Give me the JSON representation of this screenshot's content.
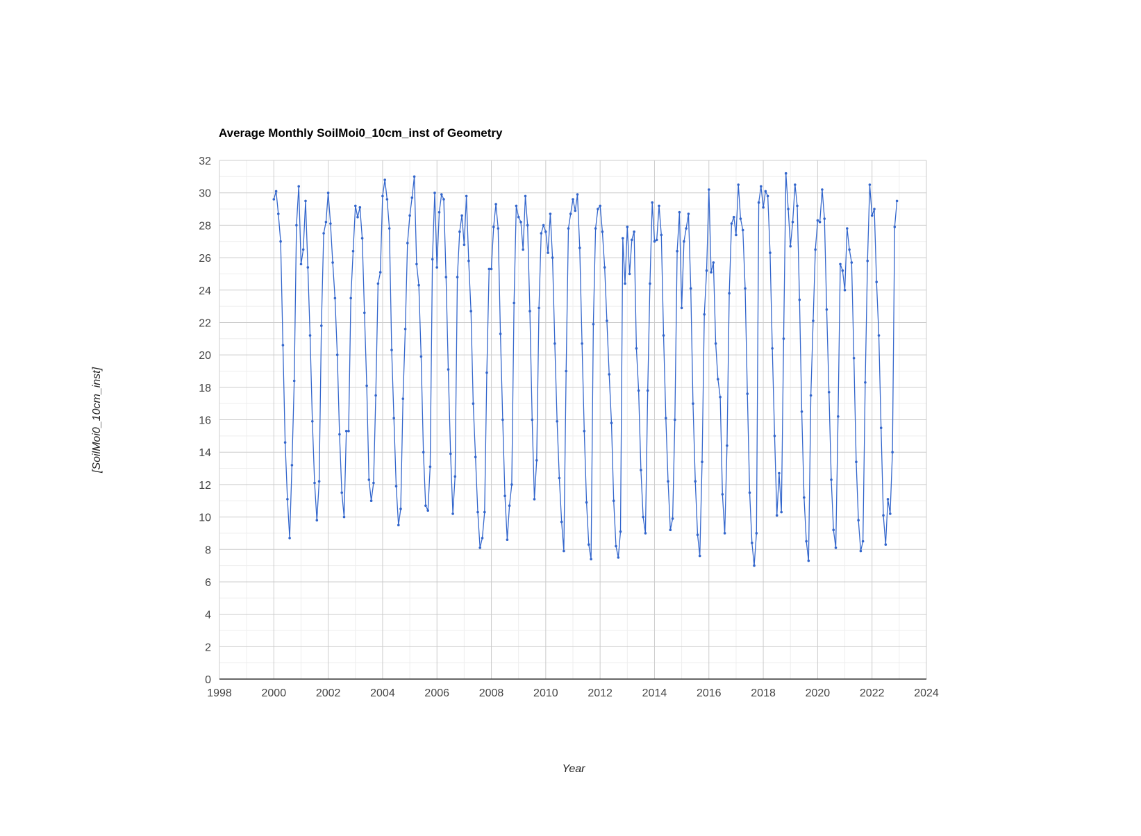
{
  "chart_data": {
    "type": "line",
    "title": "Average Monthly SoilMoi0_10cm_inst of Geometry",
    "xlabel": "Year",
    "ylabel": "[SoilMoi0_10cm_inst]",
    "xlim": [
      1998,
      2024
    ],
    "ylim": [
      0,
      32
    ],
    "xticks": [
      "1998",
      "2000",
      "2002",
      "2004",
      "2006",
      "2008",
      "2010",
      "2012",
      "2014",
      "2016",
      "2018",
      "2020",
      "2022",
      "2024"
    ],
    "yticks": [
      "0",
      "2",
      "4",
      "6",
      "8",
      "10",
      "12",
      "14",
      "16",
      "18",
      "20",
      "22",
      "24",
      "26",
      "28",
      "30",
      "32"
    ],
    "grid": true,
    "legend": "none",
    "color": "#3366cc",
    "series": [
      {
        "start": "2000-01",
        "frequency": "monthly",
        "values": [
          29.6,
          30.1,
          28.7,
          27.0,
          20.6,
          14.6,
          11.1,
          8.7,
          13.2,
          18.4,
          28.0,
          30.4,
          25.6,
          26.5,
          29.5,
          25.4,
          21.2,
          15.9,
          12.1,
          9.8,
          12.2,
          21.8,
          27.5,
          28.2,
          30.0,
          28.1,
          25.7,
          23.5,
          20.0,
          15.1,
          11.5,
          10.0,
          15.3,
          15.3,
          23.5,
          26.4,
          29.2,
          28.5,
          29.1,
          27.2,
          22.6,
          18.1,
          12.3,
          11.0,
          12.1,
          17.5,
          24.4,
          25.1,
          29.8,
          30.8,
          29.6,
          27.8,
          20.3,
          16.1,
          11.9,
          9.5,
          10.5,
          17.3,
          21.6,
          26.9,
          28.6,
          29.7,
          31.0,
          25.6,
          24.3,
          19.9,
          14.0,
          10.7,
          10.4,
          13.1,
          25.9,
          30.0,
          25.4,
          28.8,
          29.9,
          29.6,
          24.8,
          19.1,
          13.9,
          10.2,
          12.5,
          24.8,
          27.6,
          28.6,
          26.8,
          29.8,
          25.8,
          22.7,
          17.0,
          13.7,
          10.3,
          8.1,
          8.7,
          10.3,
          18.9,
          25.3,
          25.3,
          27.9,
          29.3,
          27.8,
          21.3,
          16.0,
          11.3,
          8.6,
          10.7,
          12.0,
          23.2,
          29.2,
          28.5,
          28.2,
          26.5,
          29.8,
          28.0,
          22.7,
          16.0,
          11.1,
          13.5,
          22.9,
          27.5,
          28.0,
          27.6,
          26.3,
          28.7,
          26.0,
          20.7,
          15.9,
          12.4,
          9.7,
          7.9,
          19.0,
          27.8,
          28.7,
          29.6,
          28.9,
          29.9,
          26.6,
          20.7,
          15.3,
          10.9,
          8.3,
          7.4,
          21.9,
          27.8,
          29.0,
          29.2,
          27.6,
          25.4,
          22.1,
          18.8,
          15.8,
          11.0,
          8.2,
          7.5,
          9.1,
          27.2,
          24.4,
          27.9,
          25.0,
          27.1,
          27.6,
          20.4,
          17.8,
          12.9,
          10.0,
          9.0,
          17.8,
          24.4,
          29.4,
          27.0,
          27.1,
          29.2,
          27.4,
          21.2,
          16.1,
          12.2,
          9.2,
          9.9,
          16.0,
          26.4,
          28.8,
          22.9,
          27.0,
          27.8,
          28.7,
          24.1,
          17.0,
          12.2,
          8.9,
          7.6,
          13.4,
          22.5,
          25.2,
          30.2,
          25.1,
          25.7,
          20.7,
          18.5,
          17.4,
          11.4,
          9.0,
          14.4,
          23.8,
          28.1,
          28.5,
          27.4,
          30.5,
          28.4,
          27.7,
          24.1,
          17.6,
          11.5,
          8.4,
          7.0,
          9.0,
          29.4,
          30.4,
          29.1,
          30.1,
          29.8,
          26.3,
          20.4,
          15.0,
          10.1,
          12.7,
          10.3,
          21.0,
          31.2,
          29.0,
          26.7,
          28.2,
          30.5,
          29.2,
          23.4,
          16.5,
          11.2,
          8.5,
          7.3,
          17.5,
          22.1,
          26.5,
          28.3,
          28.2,
          30.2,
          28.4,
          22.8,
          17.7,
          12.3,
          9.2,
          8.1,
          16.2,
          25.6,
          25.2,
          24.0,
          27.8,
          26.5,
          25.7,
          19.8,
          13.4,
          9.8,
          7.9,
          8.5,
          18.3,
          25.8,
          30.5,
          28.6,
          29.0,
          24.5,
          21.2,
          15.5,
          10.1,
          8.3,
          11.1,
          10.2,
          14.0,
          27.9,
          29.5
        ]
      }
    ]
  }
}
